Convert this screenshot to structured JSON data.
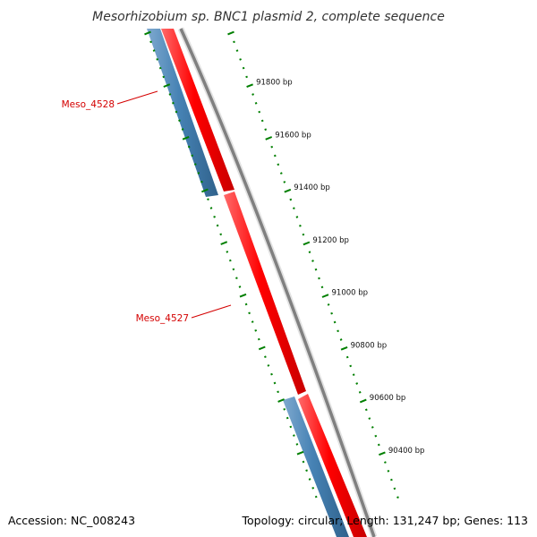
{
  "title": "Mesorhizobium sp. BNC1 plasmid 2, complete sequence",
  "footer": {
    "accession": "Accession: NC_008243",
    "summary": "Topology: circular; Length: 131,247 bp; Genes: 113"
  },
  "colors": {
    "forward_strand": "#ff0000",
    "reverse_strand": "#4682b4",
    "backbone": "#808080",
    "ticks": "#007f00",
    "gene_label": "#d40000"
  },
  "tick_labels": [
    "91800 bp",
    "91600 bp",
    "91400 bp",
    "91200 bp",
    "91000 bp",
    "90800 bp",
    "90600 bp",
    "90400 bp"
  ],
  "genes": [
    {
      "label": "Meso_4528",
      "strand": "reverse"
    },
    {
      "label": "Meso_4527",
      "strand": "forward"
    }
  ]
}
